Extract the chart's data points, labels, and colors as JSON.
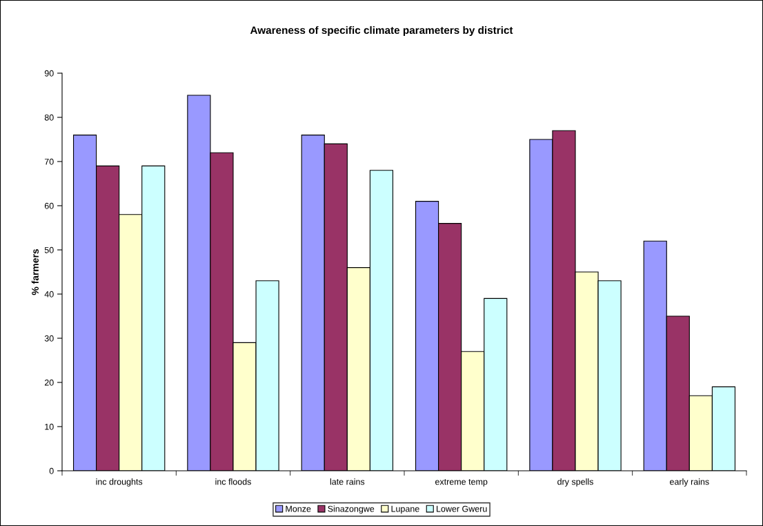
{
  "chart_data": {
    "type": "bar",
    "title": "Awareness of specific climate parameters by district",
    "ylabel": "% farmers",
    "categories": [
      "inc droughts",
      "inc floods",
      "late rains",
      "extreme temp",
      "dry spells",
      "early rains"
    ],
    "series": [
      {
        "name": "Monze",
        "color": "#9999ff",
        "values": [
          76,
          85,
          76,
          61,
          75,
          52
        ]
      },
      {
        "name": "Sinazongwe",
        "color": "#993366",
        "values": [
          69,
          72,
          74,
          56,
          77,
          35
        ]
      },
      {
        "name": "Lupane",
        "color": "#ffffcc",
        "values": [
          58,
          29,
          46,
          27,
          45,
          17
        ]
      },
      {
        "name": "Lower Gweru",
        "color": "#ccffff",
        "values": [
          69,
          43,
          68,
          39,
          43,
          19
        ]
      }
    ],
    "ylim": [
      0,
      90
    ],
    "yticks": [
      0,
      10,
      20,
      30,
      40,
      50,
      60,
      70,
      80,
      90
    ],
    "grid": false,
    "legend": "bottom"
  }
}
